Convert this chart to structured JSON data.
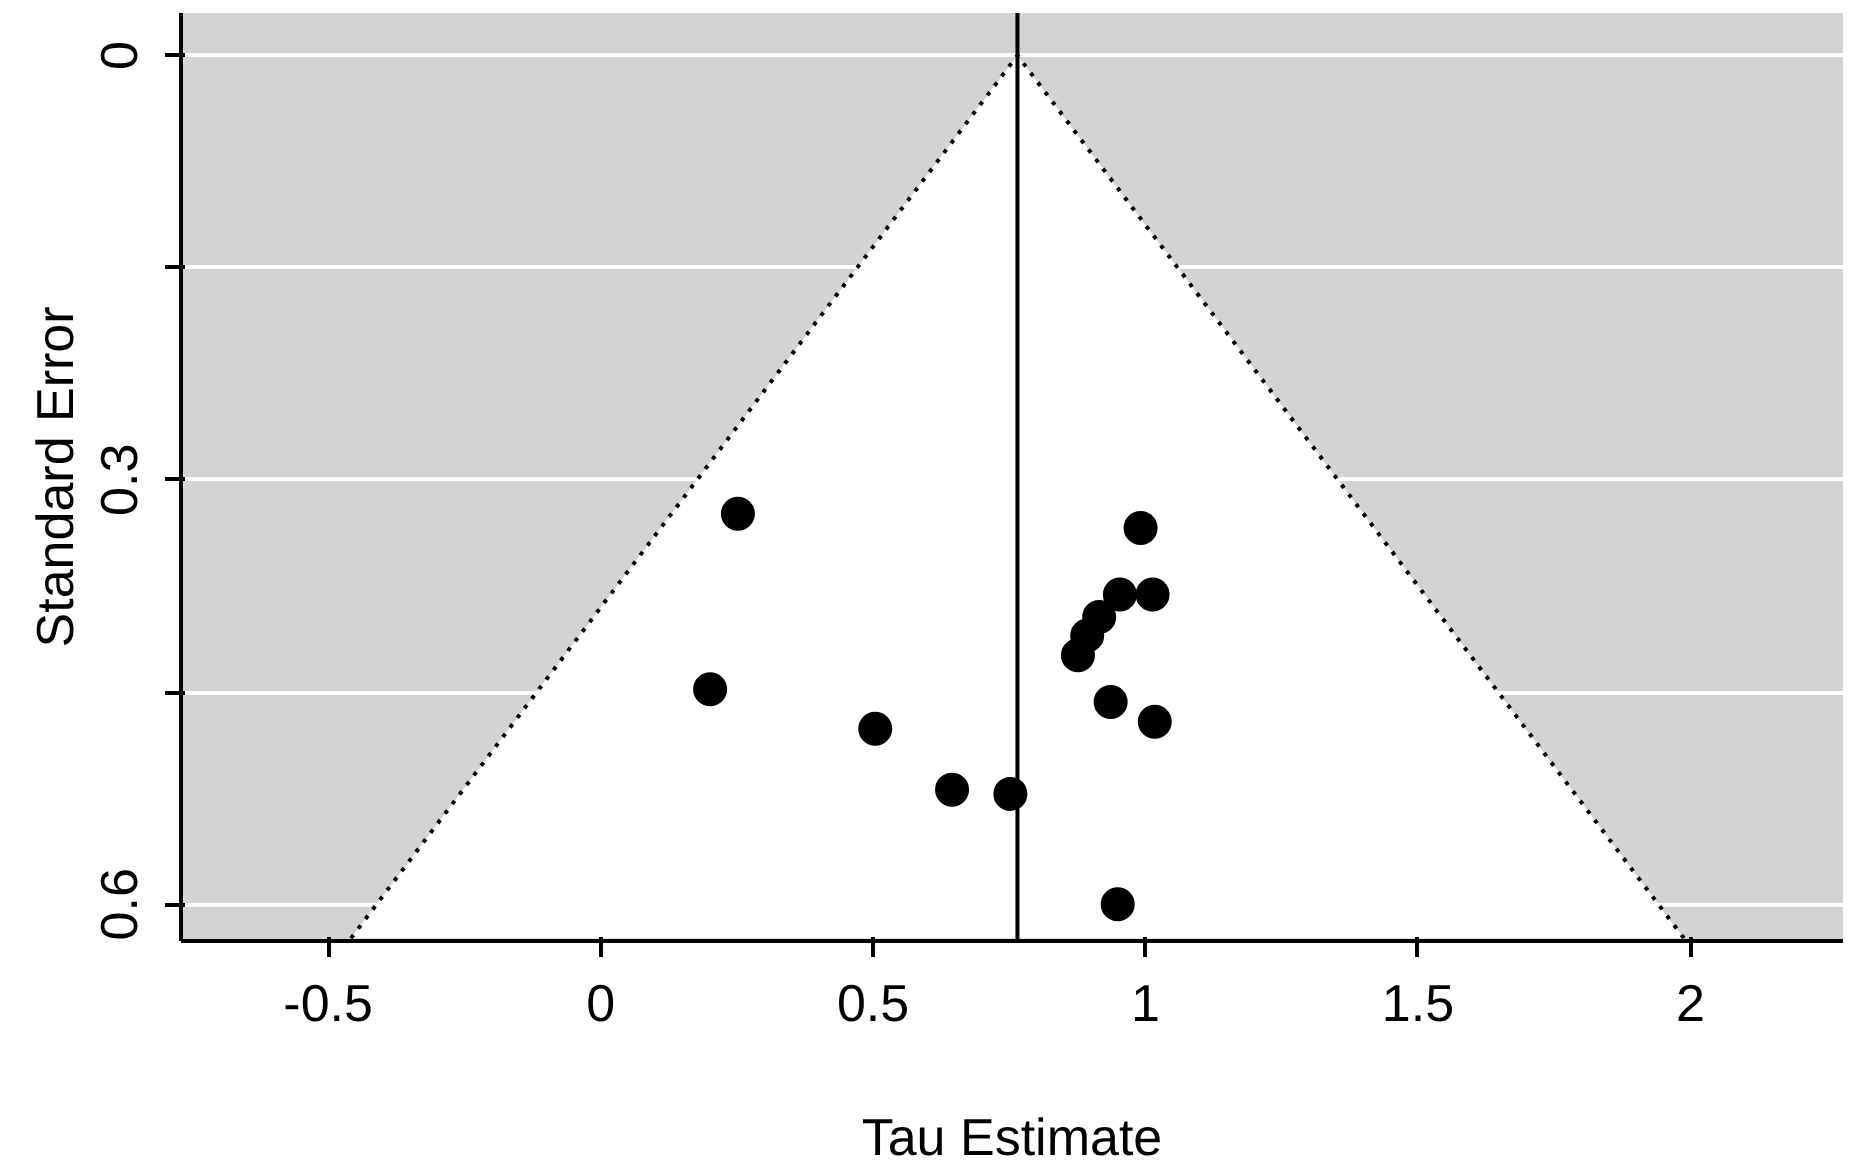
{
  "chart_data": {
    "type": "scatter",
    "xlabel": "Tau Estimate",
    "ylabel": "Standard Error",
    "xlim": [
      -0.77,
      2.28
    ],
    "ylim": [
      0.626,
      -0.03
    ],
    "xticks": [
      -0.5,
      0,
      0.5,
      1,
      1.5,
      2
    ],
    "yticks": [
      0,
      {
        "value": 0.15,
        "label": null
      },
      0.3,
      {
        "value": 0.45,
        "label": null
      },
      0.6
    ],
    "grid": "y",
    "series": [
      {
        "marker": "circle",
        "color": "#000000",
        "x": [
          0.252,
          0.201,
          0.504,
          0.645,
          0.752,
          0.949,
          0.991,
          1.013,
          0.953,
          0.915,
          0.893,
          0.876,
          0.936,
          1.017
        ],
        "values": [
          0.324,
          0.448,
          0.476,
          0.519,
          0.522,
          0.6,
          0.334,
          0.381,
          0.381,
          0.397,
          0.41,
          0.424,
          0.457,
          0.471
        ]
      },
      {
        "type": "line",
        "marker": "none",
        "color": "#000000",
        "line_style": "dotted",
        "x": [
          -0.458,
          0.765,
          1.988
        ],
        "values": [
          0.624,
          0,
          0.624
        ]
      }
    ],
    "ref_lines": [
      {
        "axis": "x",
        "value": 0.765,
        "label": null,
        "color": "#000000"
      }
    ]
  }
}
